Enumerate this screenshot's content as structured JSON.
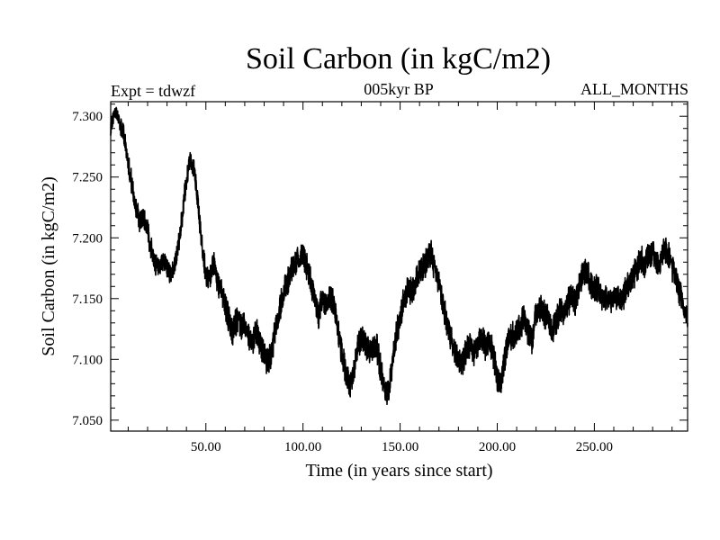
{
  "chart_data": {
    "type": "line",
    "title": "Soil Carbon (in kgC/m2)",
    "subtitle_left": "Expt = tdwzf",
    "subtitle_center": "005kyr BP",
    "subtitle_right": "ALL_MONTHS",
    "xlabel": "Time (in years since start)",
    "ylabel": "Soil Carbon (in kgC/m2)",
    "xlim": [
      1,
      298
    ],
    "ylim": [
      7.041,
      7.312
    ],
    "xticks": [
      50,
      100,
      150,
      200,
      250
    ],
    "xtick_labels": [
      "50.00",
      "100.00",
      "150.00",
      "200.00",
      "250.00"
    ],
    "yticks": [
      7.05,
      7.1,
      7.15,
      7.2,
      7.25,
      7.3
    ],
    "ytick_labels": [
      "7.050",
      "7.100",
      "7.150",
      "7.200",
      "7.250",
      "7.300"
    ],
    "grid": false,
    "legend": "none",
    "line_color": "#000000",
    "series": [
      {
        "name": "Soil Carbon",
        "x": [
          1,
          2,
          4,
          6,
          8,
          10,
          12,
          14,
          16,
          18,
          20,
          22,
          24,
          26,
          28,
          30,
          32,
          34,
          36,
          38,
          40,
          42,
          44,
          46,
          48,
          50,
          52,
          54,
          56,
          58,
          60,
          62,
          64,
          66,
          68,
          70,
          72,
          74,
          76,
          78,
          80,
          82,
          84,
          86,
          88,
          90,
          92,
          94,
          96,
          98,
          100,
          102,
          104,
          106,
          108,
          110,
          112,
          114,
          116,
          118,
          120,
          122,
          124,
          126,
          128,
          130,
          132,
          134,
          136,
          138,
          140,
          142,
          144,
          146,
          148,
          150,
          152,
          154,
          156,
          158,
          160,
          162,
          164,
          166,
          168,
          170,
          172,
          174,
          176,
          178,
          180,
          182,
          184,
          186,
          188,
          190,
          192,
          194,
          196,
          198,
          200,
          202,
          204,
          206,
          208,
          210,
          212,
          214,
          216,
          218,
          220,
          222,
          224,
          226,
          228,
          230,
          232,
          234,
          236,
          238,
          240,
          242,
          244,
          246,
          248,
          250,
          252,
          254,
          256,
          258,
          260,
          262,
          264,
          266,
          268,
          270,
          272,
          274,
          276,
          278,
          280,
          282,
          284,
          286,
          288,
          290,
          292,
          294,
          296,
          298
        ],
        "y": [
          7.29,
          7.298,
          7.305,
          7.292,
          7.284,
          7.262,
          7.243,
          7.225,
          7.214,
          7.218,
          7.205,
          7.19,
          7.178,
          7.173,
          7.182,
          7.176,
          7.169,
          7.178,
          7.194,
          7.22,
          7.248,
          7.265,
          7.255,
          7.228,
          7.193,
          7.17,
          7.165,
          7.178,
          7.163,
          7.158,
          7.144,
          7.132,
          7.122,
          7.134,
          7.126,
          7.13,
          7.12,
          7.111,
          7.124,
          7.112,
          7.104,
          7.097,
          7.108,
          7.126,
          7.142,
          7.155,
          7.163,
          7.172,
          7.178,
          7.182,
          7.188,
          7.176,
          7.164,
          7.148,
          7.137,
          7.149,
          7.142,
          7.152,
          7.145,
          7.122,
          7.106,
          7.09,
          7.078,
          7.088,
          7.107,
          7.118,
          7.113,
          7.106,
          7.108,
          7.11,
          7.092,
          7.075,
          7.07,
          7.096,
          7.12,
          7.135,
          7.15,
          7.16,
          7.155,
          7.163,
          7.172,
          7.176,
          7.182,
          7.188,
          7.172,
          7.16,
          7.146,
          7.13,
          7.118,
          7.108,
          7.102,
          7.097,
          7.106,
          7.113,
          7.104,
          7.112,
          7.118,
          7.11,
          7.116,
          7.104,
          7.084,
          7.079,
          7.103,
          7.118,
          7.12,
          7.124,
          7.128,
          7.134,
          7.122,
          7.116,
          7.138,
          7.143,
          7.138,
          7.133,
          7.124,
          7.13,
          7.141,
          7.138,
          7.145,
          7.152,
          7.147,
          7.16,
          7.17,
          7.172,
          7.164,
          7.156,
          7.16,
          7.148,
          7.152,
          7.146,
          7.15,
          7.153,
          7.148,
          7.156,
          7.163,
          7.168,
          7.176,
          7.183,
          7.178,
          7.186,
          7.19,
          7.183,
          7.179,
          7.193,
          7.186,
          7.175,
          7.168,
          7.155,
          7.143,
          7.13
        ],
        "amplitude": [
          0.006,
          0.006,
          0.006,
          0.007,
          0.008,
          0.009,
          0.01,
          0.01,
          0.01,
          0.01,
          0.01,
          0.01,
          0.01,
          0.009,
          0.01,
          0.01,
          0.008,
          0.009,
          0.01,
          0.01,
          0.01,
          0.008,
          0.009,
          0.01,
          0.01,
          0.01,
          0.01,
          0.012,
          0.012,
          0.01,
          0.012,
          0.012,
          0.012,
          0.012,
          0.012,
          0.01,
          0.012,
          0.012,
          0.012,
          0.012,
          0.013,
          0.012,
          0.012,
          0.012,
          0.012,
          0.012,
          0.012,
          0.012,
          0.012,
          0.012,
          0.012,
          0.012,
          0.012,
          0.012,
          0.012,
          0.012,
          0.012,
          0.012,
          0.012,
          0.012,
          0.012,
          0.012,
          0.012,
          0.012,
          0.012,
          0.012,
          0.012,
          0.012,
          0.012,
          0.012,
          0.012,
          0.012,
          0.012,
          0.012,
          0.012,
          0.012,
          0.012,
          0.012,
          0.012,
          0.012,
          0.012,
          0.012,
          0.012,
          0.012,
          0.012,
          0.012,
          0.012,
          0.012,
          0.012,
          0.012,
          0.012,
          0.012,
          0.012,
          0.012,
          0.012,
          0.012,
          0.012,
          0.012,
          0.012,
          0.012,
          0.012,
          0.012,
          0.012,
          0.012,
          0.012,
          0.012,
          0.012,
          0.012,
          0.012,
          0.012,
          0.012,
          0.012,
          0.012,
          0.012,
          0.012,
          0.012,
          0.012,
          0.012,
          0.012,
          0.012,
          0.012,
          0.012,
          0.012,
          0.012,
          0.012,
          0.012,
          0.012,
          0.012,
          0.012,
          0.012,
          0.012,
          0.012,
          0.012,
          0.012,
          0.012,
          0.012,
          0.012,
          0.012,
          0.012,
          0.012,
          0.012,
          0.012,
          0.012,
          0.012,
          0.012,
          0.012,
          0.012,
          0.012,
          0.012,
          0.012
        ]
      }
    ]
  }
}
